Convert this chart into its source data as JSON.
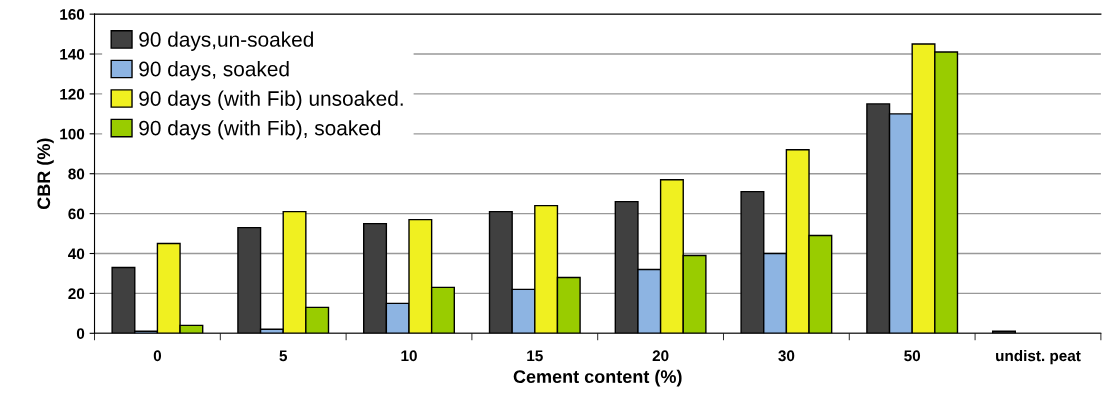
{
  "chart_data": {
    "type": "bar",
    "xlabel": "Cement content (%)",
    "ylabel": "CBR (%)",
    "categories": [
      "0",
      "5",
      "10",
      "15",
      "20",
      "30",
      "50",
      "undist. peat"
    ],
    "series": [
      {
        "name": "90 days,un-soaked",
        "color": "#404040",
        "values": [
          33,
          53,
          55,
          61,
          66,
          71,
          115,
          1
        ]
      },
      {
        "name": "90 days, soaked",
        "color": "#8db4e2",
        "values": [
          1,
          2,
          15,
          22,
          32,
          40,
          110,
          null
        ]
      },
      {
        "name": "90 days (with Fib) unsoaked.",
        "color": "#f0f020",
        "values": [
          45,
          61,
          57,
          64,
          77,
          92,
          145,
          null
        ]
      },
      {
        "name": "90 days (with Fib), soaked",
        "color": "#99cc00",
        "values": [
          4,
          13,
          23,
          28,
          39,
          49,
          141,
          null
        ]
      }
    ],
    "ylim": [
      0,
      160
    ],
    "yticks": [
      0,
      20,
      40,
      60,
      80,
      100,
      120,
      140,
      160
    ],
    "grid": "y",
    "legend": "top left"
  }
}
